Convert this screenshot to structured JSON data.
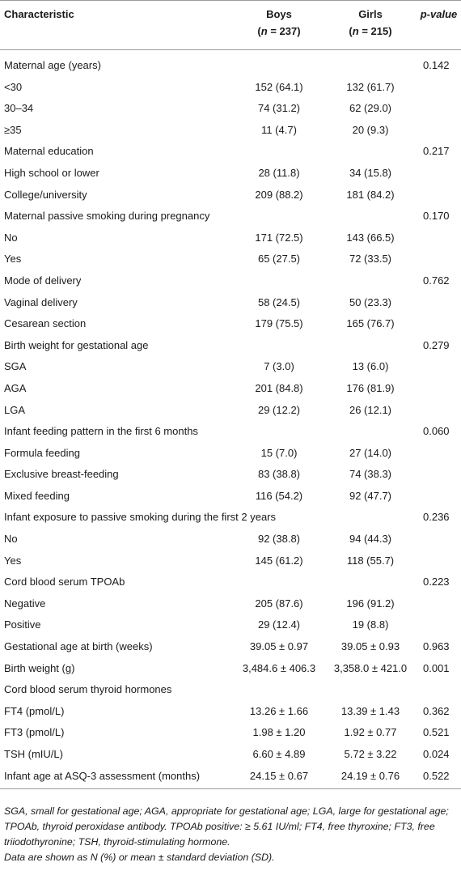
{
  "table": {
    "headers": {
      "characteristic": "Characteristic",
      "boys": "Boys",
      "girls": "Girls",
      "pvalue": "p-value",
      "boys_n": "(n = 237)",
      "girls_n": "(n = 215)"
    },
    "rows": [
      {
        "label": "Maternal age (years)",
        "boys": "",
        "girls": "",
        "p": "0.142"
      },
      {
        "label": "<30",
        "boys": "152 (64.1)",
        "girls": "132 (61.7)",
        "p": ""
      },
      {
        "label": "30–34",
        "boys": "74 (31.2)",
        "girls": "62 (29.0)",
        "p": ""
      },
      {
        "label": "≥35",
        "boys": "11 (4.7)",
        "girls": "20 (9.3)",
        "p": ""
      },
      {
        "label": "Maternal education",
        "boys": "",
        "girls": "",
        "p": "0.217"
      },
      {
        "label": "High school or lower",
        "boys": "28 (11.8)",
        "girls": "34 (15.8)",
        "p": ""
      },
      {
        "label": "College/university",
        "boys": "209 (88.2)",
        "girls": "181 (84.2)",
        "p": ""
      },
      {
        "label": "Maternal passive smoking during pregnancy",
        "boys": "",
        "girls": "",
        "p": "0.170"
      },
      {
        "label": "No",
        "boys": "171 (72.5)",
        "girls": "143 (66.5)",
        "p": ""
      },
      {
        "label": "Yes",
        "boys": "65 (27.5)",
        "girls": "72 (33.5)",
        "p": ""
      },
      {
        "label": "Mode of delivery",
        "boys": "",
        "girls": "",
        "p": "0.762"
      },
      {
        "label": "Vaginal delivery",
        "boys": "58 (24.5)",
        "girls": "50 (23.3)",
        "p": ""
      },
      {
        "label": "Cesarean section",
        "boys": "179 (75.5)",
        "girls": "165 (76.7)",
        "p": ""
      },
      {
        "label": "Birth weight for gestational age",
        "boys": "",
        "girls": "",
        "p": "0.279"
      },
      {
        "label": "SGA",
        "boys": "7 (3.0)",
        "girls": "13 (6.0)",
        "p": ""
      },
      {
        "label": "AGA",
        "boys": "201 (84.8)",
        "girls": "176 (81.9)",
        "p": ""
      },
      {
        "label": "LGA",
        "boys": "29 (12.2)",
        "girls": "26 (12.1)",
        "p": ""
      },
      {
        "label": "Infant feeding pattern in the first 6 months",
        "boys": "",
        "girls": "",
        "p": "0.060"
      },
      {
        "label": "Formula feeding",
        "boys": "15 (7.0)",
        "girls": "27 (14.0)",
        "p": ""
      },
      {
        "label": "Exclusive breast-feeding",
        "boys": "83 (38.8)",
        "girls": "74 (38.3)",
        "p": ""
      },
      {
        "label": "Mixed feeding",
        "boys": "116 (54.2)",
        "girls": "92 (47.7)",
        "p": ""
      },
      {
        "label": "Infant exposure to passive smoking during the first 2 years",
        "boys": "",
        "girls": "",
        "p": "0.236"
      },
      {
        "label": "No",
        "boys": "92 (38.8)",
        "girls": "94 (44.3)",
        "p": ""
      },
      {
        "label": "Yes",
        "boys": "145 (61.2)",
        "girls": "118 (55.7)",
        "p": ""
      },
      {
        "label": "Cord blood serum TPOAb",
        "boys": "",
        "girls": "",
        "p": "0.223"
      },
      {
        "label": "Negative",
        "boys": "205 (87.6)",
        "girls": "196 (91.2)",
        "p": ""
      },
      {
        "label": "Positive",
        "boys": "29 (12.4)",
        "girls": "19 (8.8)",
        "p": ""
      },
      {
        "label": "Gestational age at birth (weeks)",
        "boys": "39.05 ± 0.97",
        "girls": "39.05 ± 0.93",
        "p": "0.963"
      },
      {
        "label": "Birth weight (g)",
        "boys": "3,484.6 ± 406.3",
        "girls": "3,358.0 ± 421.0",
        "p": "0.001"
      },
      {
        "label": "Cord blood serum thyroid hormones",
        "boys": "",
        "girls": "",
        "p": ""
      },
      {
        "label": "FT4 (pmol/L)",
        "boys": "13.26 ± 1.66",
        "girls": "13.39 ± 1.43",
        "p": "0.362"
      },
      {
        "label": "FT3 (pmol/L)",
        "boys": "1.98 ± 1.20",
        "girls": "1.92 ± 0.77",
        "p": "0.521"
      },
      {
        "label": "TSH (mIU/L)",
        "boys": "6.60 ± 4.89",
        "girls": "5.72 ± 3.22",
        "p": "0.024"
      },
      {
        "label": "Infant age at ASQ-3 assessment (months)",
        "boys": "24.15 ± 0.67",
        "girls": "24.19 ± 0.76",
        "p": "0.522"
      }
    ]
  },
  "footnote": {
    "line1": "SGA, small for gestational age; AGA, appropriate for gestational age; LGA, large for gestational age; TPOAb, thyroid peroxidase antibody. TPOAb positive: ≥ 5.61 IU/ml; FT4, free thyroxine; FT3, free triiodothyronine; TSH, thyroid-stimulating hormone.",
    "line2": "Data are shown as N (%) or mean ± standard deviation (SD)."
  }
}
